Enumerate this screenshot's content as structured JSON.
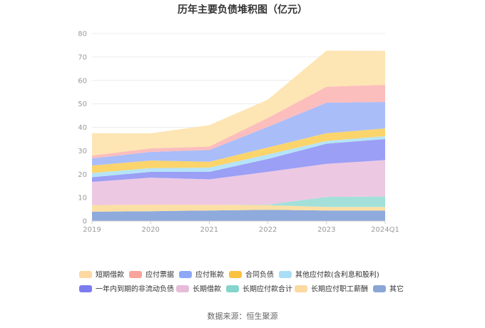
{
  "chart_data": {
    "type": "area",
    "stacked": true,
    "title": "历年主要负债堆积图（亿元）",
    "categories": [
      "2019",
      "2020",
      "2021",
      "2022",
      "2023",
      "2024Q1"
    ],
    "ylim": [
      0,
      80
    ],
    "yticks": [
      0,
      10,
      20,
      30,
      40,
      50,
      60,
      70,
      80
    ],
    "grid": true,
    "legend_position": "bottom",
    "series": [
      {
        "name": "其它",
        "color": "#8faadc",
        "values": [
          4.0,
          4.2,
          4.5,
          4.8,
          4.5,
          4.5
        ]
      },
      {
        "name": "长期应付职工薪酬",
        "color": "#fcdfa4",
        "values": [
          2.8,
          2.8,
          2.4,
          2.0,
          1.5,
          1.5
        ]
      },
      {
        "name": "长期应付款合计",
        "color": "#a3e0da",
        "values": [
          0,
          0,
          0,
          0.2,
          4.3,
          4.5
        ]
      },
      {
        "name": "长期借款",
        "color": "#edc8e3",
        "values": [
          9.9,
          11.5,
          10.9,
          14.0,
          14.1,
          15.5
        ]
      },
      {
        "name": "一年内到期的非流动负债",
        "color": "#9b9ff5",
        "values": [
          2.0,
          2.5,
          3.2,
          5.5,
          8.6,
          9.0
        ]
      },
      {
        "name": "其他应付款(含利息和股利)",
        "color": "#b5e4f8",
        "values": [
          1.8,
          1.6,
          1.8,
          1.9,
          1.2,
          1.2
        ]
      },
      {
        "name": "合同负债",
        "color": "#fbd46b",
        "values": [
          3.2,
          3.2,
          2.5,
          3.0,
          3.3,
          3.3
        ]
      },
      {
        "name": "应付账款",
        "color": "#a9bdf9",
        "values": [
          3.0,
          3.7,
          5.0,
          8.8,
          13.0,
          11.3
        ]
      },
      {
        "name": "应付票据",
        "color": "#fcbdbd",
        "values": [
          1.2,
          1.5,
          1.5,
          3.8,
          6.8,
          7.3
        ]
      },
      {
        "name": "短期借款",
        "color": "#fde5b4",
        "values": [
          9.6,
          6.4,
          9.1,
          7.8,
          15.4,
          14.5
        ]
      }
    ],
    "legend_order": [
      "短期借款",
      "应付票据",
      "应付账款",
      "合同负债",
      "其他应付款(含利息和股利)",
      "一年内到期的非流动负债",
      "长期借款",
      "长期应付款合计",
      "长期应付职工薪酬",
      "其它"
    ],
    "legend_colors": {
      "短期借款": "#fdd8a0",
      "应付票据": "#f8a39b",
      "应付账款": "#8ea8f8",
      "合同负债": "#f9c33f",
      "其他应付款(含利息和股利)": "#a9def6",
      "一年内到期的非流动负债": "#7b7cf0",
      "长期借款": "#e6bcd9",
      "长期应付款合计": "#86d5cd",
      "长期应付职工薪酬": "#fbd9a0",
      "其它": "#8aa6d6"
    },
    "source": "数据来源：恒生聚源"
  }
}
